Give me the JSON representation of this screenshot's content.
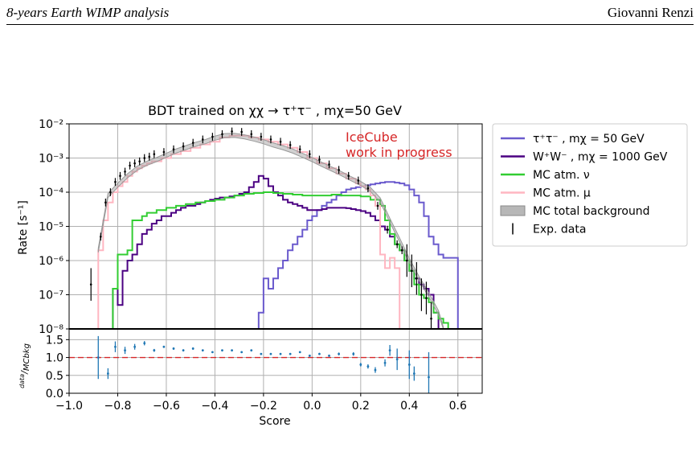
{
  "header": {
    "title": "8-years Earth WIMP analysis",
    "author": "Giovanni Renzi"
  },
  "annotation": {
    "line1": "IceCube",
    "line2": "work in progress",
    "color": "#d62728"
  },
  "chart_data": [
    {
      "type": "line",
      "title": "BDT trained on χχ → τ⁺τ⁻ , mχ=50 GeV",
      "xlabel": "",
      "ylabel": "Rate [s⁻¹]",
      "xlim": [
        -1.0,
        0.7
      ],
      "ylim": [
        1e-08,
        0.01
      ],
      "yscale": "log",
      "ytick_labels": [
        "10⁻⁸",
        "10⁻⁷",
        "10⁻⁶",
        "10⁻⁵",
        "10⁻⁴",
        "10⁻³",
        "10⁻²"
      ],
      "grid": true,
      "legend_position": "outside-right",
      "series": [
        {
          "name": "τ⁺τ⁻ , mχ = 50 GeV",
          "color": "#6a5acd",
          "style": "step",
          "x": [
            -0.22,
            -0.2,
            -0.18,
            -0.16,
            -0.14,
            -0.12,
            -0.1,
            -0.08,
            -0.06,
            -0.04,
            -0.02,
            0.0,
            0.02,
            0.04,
            0.06,
            0.08,
            0.1,
            0.12,
            0.14,
            0.16,
            0.18,
            0.2,
            0.22,
            0.24,
            0.26,
            0.28,
            0.3,
            0.32,
            0.34,
            0.36,
            0.38,
            0.4,
            0.42,
            0.44,
            0.46,
            0.48,
            0.5,
            0.52,
            0.54,
            0.56,
            0.58,
            0.6
          ],
          "y": [
            3e-08,
            3e-07,
            1.5e-07,
            3e-07,
            6e-07,
            1e-06,
            2e-06,
            3e-06,
            5e-06,
            8e-06,
            1.5e-05,
            2e-05,
            3e-05,
            4e-05,
            5e-05,
            6e-05,
            8e-05,
            0.0001,
            0.00012,
            0.00013,
            0.00014,
            0.00015,
            0.00016,
            0.00017,
            0.00018,
            0.00019,
            0.0002,
            0.0002,
            0.00019,
            0.00018,
            0.00016,
            0.00012,
            8e-05,
            5e-05,
            2e-05,
            5e-06,
            3e-06,
            1.5e-06,
            1.2e-06,
            1.2e-06,
            1.2e-06,
            1e-08
          ]
        },
        {
          "name": "W⁺W⁻ , mχ = 1000 GeV",
          "color": "#4b0082",
          "style": "step",
          "x": [
            -0.82,
            -0.8,
            -0.78,
            -0.76,
            -0.74,
            -0.72,
            -0.7,
            -0.68,
            -0.66,
            -0.64,
            -0.62,
            -0.6,
            -0.58,
            -0.56,
            -0.54,
            -0.52,
            -0.5,
            -0.48,
            -0.46,
            -0.44,
            -0.42,
            -0.4,
            -0.38,
            -0.36,
            -0.34,
            -0.32,
            -0.3,
            -0.28,
            -0.26,
            -0.24,
            -0.22,
            -0.2,
            -0.18,
            -0.16,
            -0.14,
            -0.12,
            -0.1,
            -0.08,
            -0.06,
            -0.04,
            -0.02,
            0.0,
            0.02,
            0.04,
            0.06,
            0.08,
            0.1,
            0.12,
            0.14,
            0.16,
            0.18,
            0.2,
            0.22,
            0.24,
            0.26,
            0.28,
            0.3,
            0.32,
            0.34,
            0.36,
            0.38,
            0.4,
            0.42,
            0.44,
            0.46,
            0.48,
            0.5,
            0.52
          ],
          "y": [
            1.5e-07,
            5e-08,
            5e-07,
            1e-06,
            1.5e-06,
            3e-06,
            6e-06,
            8e-06,
            1.2e-05,
            1.5e-05,
            2e-05,
            2e-05,
            2.5e-05,
            3e-05,
            3.5e-05,
            4e-05,
            4e-05,
            4.5e-05,
            5e-05,
            5.5e-05,
            6e-05,
            6.5e-05,
            7e-05,
            7e-05,
            7.5e-05,
            8e-05,
            9e-05,
            0.0001,
            0.00014,
            0.0002,
            0.0003,
            0.00025,
            0.00015,
            0.0001,
            8e-05,
            6e-05,
            5e-05,
            4.5e-05,
            4e-05,
            3.5e-05,
            3e-05,
            3e-05,
            3e-05,
            3.2e-05,
            3.5e-05,
            3.5e-05,
            3.5e-05,
            3.5e-05,
            3.4e-05,
            3.2e-05,
            3e-05,
            2.8e-05,
            2.5e-05,
            2e-05,
            1.5e-05,
            1e-05,
            8e-06,
            5e-06,
            3e-06,
            2e-06,
            1e-06,
            5e-07,
            3e-07,
            2e-07,
            1.5e-07,
            1e-07,
            3e-08,
            1e-08
          ]
        },
        {
          "name": "MC atm. ν",
          "color": "#32cd32",
          "style": "step",
          "x": [
            -0.84,
            -0.82,
            -0.8,
            -0.78,
            -0.76,
            -0.74,
            -0.72,
            -0.7,
            -0.68,
            -0.64,
            -0.6,
            -0.56,
            -0.52,
            -0.48,
            -0.44,
            -0.4,
            -0.36,
            -0.32,
            -0.28,
            -0.24,
            -0.2,
            -0.16,
            -0.12,
            -0.08,
            -0.04,
            0.0,
            0.04,
            0.08,
            0.12,
            0.16,
            0.2,
            0.24,
            0.28,
            0.3,
            0.32,
            0.34,
            0.36,
            0.38,
            0.4,
            0.42,
            0.44,
            0.46,
            0.48,
            0.5,
            0.52,
            0.54,
            0.56
          ],
          "y": [
            1e-08,
            1.5e-07,
            1.5e-06,
            1.5e-06,
            2e-06,
            1.5e-05,
            1.5e-05,
            2e-05,
            2.5e-05,
            3e-05,
            3.5e-05,
            4e-05,
            4.5e-05,
            5e-05,
            5.5e-05,
            6e-05,
            7e-05,
            8e-05,
            9e-05,
            9.5e-05,
            0.0001,
            9.5e-05,
            9e-05,
            8.5e-05,
            8e-05,
            8e-05,
            8e-05,
            8.5e-05,
            8e-05,
            8e-05,
            7.5e-05,
            6e-05,
            4e-05,
            1.5e-05,
            6e-06,
            3e-06,
            2e-06,
            1e-06,
            5e-07,
            2e-07,
            1e-07,
            8e-08,
            6e-08,
            3e-08,
            2e-08,
            1.5e-08,
            1e-08
          ]
        },
        {
          "name": "MC atm. μ",
          "color": "#ffb6c1",
          "style": "step",
          "x": [
            -0.9,
            -0.88,
            -0.86,
            -0.84,
            -0.82,
            -0.8,
            -0.78,
            -0.76,
            -0.74,
            -0.72,
            -0.7,
            -0.68,
            -0.66,
            -0.62,
            -0.58,
            -0.54,
            -0.5,
            -0.46,
            -0.42,
            -0.38,
            -0.34,
            -0.3,
            -0.26,
            -0.22,
            -0.18,
            -0.14,
            -0.1,
            -0.06,
            -0.02,
            0.02,
            0.06,
            0.1,
            0.14,
            0.18,
            0.2,
            0.22,
            0.24,
            0.26,
            0.28,
            0.3,
            0.32,
            0.34,
            0.36
          ],
          "y": [
            1e-08,
            2e-06,
            1.5e-05,
            5e-05,
            0.0001,
            0.00015,
            0.0002,
            0.0003,
            0.0004,
            0.0005,
            0.0006,
            0.0007,
            0.0008,
            0.001,
            0.0013,
            0.0016,
            0.002,
            0.0025,
            0.003,
            0.004,
            0.0045,
            0.0045,
            0.004,
            0.0035,
            0.003,
            0.0025,
            0.002,
            0.0015,
            0.001,
            0.0007,
            0.0005,
            0.00035,
            0.00025,
            0.00018,
            0.00015,
            0.00012,
            8e-05,
            4e-05,
            1.5e-06,
            6e-07,
            1.2e-06,
            6e-07,
            1e-08
          ]
        },
        {
          "name": "MC total background",
          "color": "#999999",
          "style": "band",
          "x": [
            -0.88,
            -0.84,
            -0.8,
            -0.76,
            -0.72,
            -0.68,
            -0.64,
            -0.6,
            -0.56,
            -0.52,
            -0.48,
            -0.44,
            -0.4,
            -0.36,
            -0.32,
            -0.28,
            -0.24,
            -0.2,
            -0.16,
            -0.12,
            -0.08,
            -0.04,
            0.0,
            0.04,
            0.08,
            0.12,
            0.16,
            0.2,
            0.24,
            0.28,
            0.32,
            0.36,
            0.4,
            0.44,
            0.48,
            0.52,
            0.54
          ],
          "y": [
            2e-06,
            8e-05,
            0.00016,
            0.0003,
            0.0005,
            0.0007,
            0.0009,
            0.0012,
            0.0016,
            0.002,
            0.0025,
            0.003,
            0.0038,
            0.0045,
            0.0046,
            0.0042,
            0.0036,
            0.003,
            0.0024,
            0.002,
            0.0016,
            0.0012,
            0.0009,
            0.00065,
            0.00048,
            0.00035,
            0.00025,
            0.00018,
            0.00012,
            6e-05,
            1.5e-05,
            4e-06,
            1e-06,
            3e-07,
            1e-07,
            3e-08,
            1e-08
          ]
        },
        {
          "name": "Exp. data",
          "color": "#000000",
          "style": "errorbar",
          "x": [
            -0.91,
            -0.87,
            -0.85,
            -0.83,
            -0.81,
            -0.79,
            -0.77,
            -0.75,
            -0.73,
            -0.71,
            -0.69,
            -0.67,
            -0.65,
            -0.61,
            -0.57,
            -0.53,
            -0.49,
            -0.45,
            -0.41,
            -0.37,
            -0.33,
            -0.29,
            -0.25,
            -0.21,
            -0.17,
            -0.13,
            -0.09,
            -0.05,
            -0.01,
            0.03,
            0.07,
            0.11,
            0.15,
            0.19,
            0.23,
            0.27,
            0.31,
            0.35,
            0.37,
            0.39,
            0.41,
            0.43,
            0.45,
            0.47,
            0.49
          ],
          "y": [
            2e-07,
            5e-06,
            5e-05,
            0.0001,
            0.0002,
            0.0003,
            0.0004,
            0.0006,
            0.0007,
            0.0008,
            0.001,
            0.0011,
            0.0013,
            0.0015,
            0.0018,
            0.0022,
            0.0028,
            0.0035,
            0.0042,
            0.005,
            0.006,
            0.0058,
            0.005,
            0.0042,
            0.0035,
            0.003,
            0.0024,
            0.0018,
            0.0013,
            0.0009,
            0.00065,
            0.00045,
            0.0003,
            0.00022,
            0.00013,
            4e-05,
            8e-06,
            3e-06,
            2e-06,
            1e-06,
            5e-07,
            3e-07,
            1e-07,
            8e-08,
            2e-08
          ]
        }
      ]
    },
    {
      "type": "scatter",
      "title": "",
      "xlabel": "Score",
      "ylabel": "data/MCbkg",
      "ylabel_numerator": "data",
      "ylabel_denominator": "MCbkg",
      "xlim": [
        -1.0,
        0.7
      ],
      "ylim": [
        0.0,
        1.8
      ],
      "xticks": [
        -1.0,
        -0.8,
        -0.6,
        -0.4,
        -0.2,
        0.0,
        0.2,
        0.4,
        0.6
      ],
      "yticks": [
        0.0,
        0.5,
        1.0,
        1.5
      ],
      "reference_line": 1.0,
      "reference_color": "#d62728",
      "grid": true,
      "series": [
        {
          "name": "",
          "color": "#1f77b4",
          "x": [
            -0.88,
            -0.84,
            -0.81,
            -0.77,
            -0.73,
            -0.69,
            -0.65,
            -0.61,
            -0.57,
            -0.53,
            -0.49,
            -0.45,
            -0.41,
            -0.37,
            -0.33,
            -0.29,
            -0.25,
            -0.21,
            -0.17,
            -0.13,
            -0.09,
            -0.05,
            -0.01,
            0.03,
            0.07,
            0.11,
            0.17,
            0.2,
            0.23,
            0.26,
            0.3,
            0.32,
            0.35,
            0.4,
            0.42,
            0.48
          ],
          "y": [
            1.0,
            0.55,
            1.3,
            1.2,
            1.3,
            1.4,
            1.2,
            1.3,
            1.25,
            1.2,
            1.25,
            1.2,
            1.15,
            1.2,
            1.2,
            1.15,
            1.2,
            1.1,
            1.1,
            1.1,
            1.1,
            1.15,
            1.05,
            1.1,
            1.05,
            1.1,
            1.1,
            0.8,
            0.75,
            0.65,
            0.85,
            1.2,
            0.95,
            0.8,
            0.55,
            0.45
          ],
          "err": [
            0.6,
            0.15,
            0.15,
            0.1,
            0.08,
            0.06,
            0.04,
            0.03,
            0.03,
            0.03,
            0.03,
            0.02,
            0.02,
            0.02,
            0.02,
            0.02,
            0.02,
            0.02,
            0.02,
            0.02,
            0.02,
            0.02,
            0.03,
            0.03,
            0.03,
            0.04,
            0.05,
            0.05,
            0.06,
            0.08,
            0.1,
            0.15,
            0.3,
            0.4,
            0.2,
            0.7
          ]
        }
      ]
    }
  ]
}
